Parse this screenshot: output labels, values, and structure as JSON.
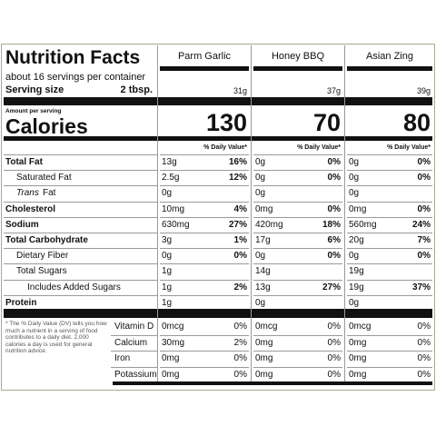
{
  "title": "Nutrition Facts",
  "servings": "about 16 servings per container",
  "serving_size_label": "Serving size",
  "serving_size": "2 tbsp.",
  "amount_per_serving": "Amount per serving",
  "calories_label": "Calories",
  "nutrients": [
    {
      "label": "Total Fat"
    },
    {
      "label": "Saturated Fat"
    },
    {
      "prefix": "Trans",
      "label": "Fat"
    },
    {
      "label": "Cholesterol"
    },
    {
      "label": "Sodium"
    },
    {
      "label": "Total Carbohydrate"
    },
    {
      "label": "Dietary Fiber"
    },
    {
      "label": "Total Sugars"
    },
    {
      "label": "Includes Added Sugars"
    },
    {
      "label": "Protein"
    }
  ],
  "footnote": "* The % Daily Value (DV) tells you how much a nutrient in a serving of food contributes to a daily diet. 2,000 calories a day is used for general nutrition advice.",
  "vitamins": [
    "Vitamin D",
    "Calcium",
    "Iron",
    "Potassium"
  ],
  "columns": [
    {
      "name": "Parm Garlic",
      "serving_weight": "31g",
      "calories": 130,
      "dv_header": "% Daily Value*",
      "nutrients": [
        {
          "amount": "13g",
          "dv": "16%"
        },
        {
          "amount": "2.5g",
          "dv": "12%"
        },
        {
          "amount": "0g",
          "dv": null
        },
        {
          "amount": "10mg",
          "dv": "4%"
        },
        {
          "amount": "630mg",
          "dv": "27%"
        },
        {
          "amount": "3g",
          "dv": "1%"
        },
        {
          "amount": "0g",
          "dv": "0%"
        },
        {
          "amount": "1g",
          "dv": null
        },
        {
          "amount": "1g",
          "dv": "2%"
        },
        {
          "amount": "1g",
          "dv": null
        }
      ],
      "vitamins": [
        {
          "amount": "0mcg",
          "dv": "0%"
        },
        {
          "amount": "30mg",
          "dv": "2%"
        },
        {
          "amount": "0mg",
          "dv": "0%"
        },
        {
          "amount": "0mg",
          "dv": "0%"
        }
      ]
    },
    {
      "name": "Honey BBQ",
      "serving_weight": "37g",
      "calories": 70,
      "dv_header": "% Daily Value*",
      "nutrients": [
        {
          "amount": "0g",
          "dv": "0%"
        },
        {
          "amount": "0g",
          "dv": "0%"
        },
        {
          "amount": "0g",
          "dv": null
        },
        {
          "amount": "0mg",
          "dv": "0%"
        },
        {
          "amount": "420mg",
          "dv": "18%"
        },
        {
          "amount": "17g",
          "dv": "6%"
        },
        {
          "amount": "0g",
          "dv": "0%"
        },
        {
          "amount": "14g",
          "dv": null
        },
        {
          "amount": "13g",
          "dv": "27%"
        },
        {
          "amount": "0g",
          "dv": null
        }
      ],
      "vitamins": [
        {
          "amount": "0mcg",
          "dv": "0%"
        },
        {
          "amount": "0mg",
          "dv": "0%"
        },
        {
          "amount": "0mg",
          "dv": "0%"
        },
        {
          "amount": "0mg",
          "dv": "0%"
        }
      ]
    },
    {
      "name": "Asian Zing",
      "serving_weight": "39g",
      "calories": 80,
      "dv_header": "% Daily Value*",
      "nutrients": [
        {
          "amount": "0g",
          "dv": "0%"
        },
        {
          "amount": "0g",
          "dv": "0%"
        },
        {
          "amount": "0g",
          "dv": null
        },
        {
          "amount": "0mg",
          "dv": "0%"
        },
        {
          "amount": "560mg",
          "dv": "24%"
        },
        {
          "amount": "20g",
          "dv": "7%"
        },
        {
          "amount": "0g",
          "dv": "0%"
        },
        {
          "amount": "19g",
          "dv": null
        },
        {
          "amount": "19g",
          "dv": "37%"
        },
        {
          "amount": "0g",
          "dv": null
        }
      ],
      "vitamins": [
        {
          "amount": "0mcg",
          "dv": "0%"
        },
        {
          "amount": "0mg",
          "dv": "0%"
        },
        {
          "amount": "0mg",
          "dv": "0%"
        },
        {
          "amount": "0mg",
          "dv": "0%"
        }
      ]
    }
  ]
}
